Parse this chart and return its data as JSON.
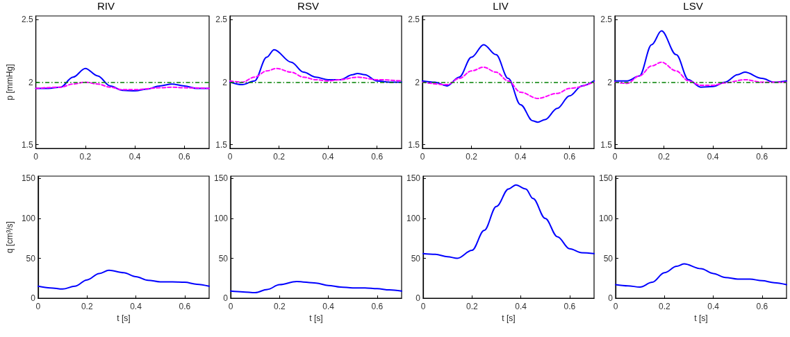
{
  "chart_data": [
    {
      "type": "line",
      "title": "RIV",
      "ylabel": "p [mmHg]",
      "xlim": [
        0,
        0.7
      ],
      "xticks": [
        0,
        0.2,
        0.4,
        0.6
      ],
      "ylim": [
        1.47,
        2.53
      ],
      "yticks": [
        1.5,
        2,
        2.5
      ],
      "grid": false,
      "marker": "none",
      "ref_lines": [
        {
          "axis": "y",
          "value": 2,
          "color": "#008000",
          "line_style": "dashdot"
        }
      ],
      "series": [
        {
          "color": "#0000ff",
          "line_style": "solid",
          "x": [
            0,
            0.05,
            0.1,
            0.15,
            0.2,
            0.25,
            0.3,
            0.35,
            0.4,
            0.45,
            0.5,
            0.55,
            0.6,
            0.65,
            0.7
          ],
          "values": [
            1.95,
            1.95,
            1.96,
            2.04,
            2.11,
            2.05,
            1.97,
            1.935,
            1.93,
            1.945,
            1.97,
            1.985,
            1.97,
            1.95,
            1.95
          ]
        },
        {
          "color": "#ff00ff",
          "line_style": "dashed",
          "x": [
            0,
            0.1,
            0.15,
            0.2,
            0.25,
            0.3,
            0.35,
            0.4,
            0.5,
            0.55,
            0.6,
            0.7
          ],
          "values": [
            1.95,
            1.96,
            1.985,
            2.0,
            1.985,
            1.96,
            1.94,
            1.94,
            1.955,
            1.96,
            1.955,
            1.95
          ]
        }
      ]
    },
    {
      "type": "line",
      "title": "RSV",
      "xlim": [
        0,
        0.7
      ],
      "xticks": [
        0,
        0.2,
        0.4,
        0.6
      ],
      "ylim": [
        1.47,
        2.53
      ],
      "yticks": [
        1.5,
        2,
        2.5
      ],
      "grid": false,
      "marker": "none",
      "ref_lines": [
        {
          "axis": "y",
          "value": 2,
          "color": "#008000",
          "line_style": "dashdot"
        }
      ],
      "series": [
        {
          "color": "#0000ff",
          "line_style": "solid",
          "x": [
            0,
            0.05,
            0.1,
            0.15,
            0.18,
            0.25,
            0.3,
            0.35,
            0.4,
            0.45,
            0.5,
            0.52,
            0.55,
            0.6,
            0.65,
            0.7
          ],
          "values": [
            2.0,
            1.98,
            2.01,
            2.2,
            2.26,
            2.16,
            2.08,
            2.04,
            2.02,
            2.02,
            2.06,
            2.07,
            2.06,
            2.01,
            2.0,
            2.0
          ]
        },
        {
          "color": "#ff00ff",
          "line_style": "dashed",
          "x": [
            0,
            0.05,
            0.1,
            0.15,
            0.19,
            0.25,
            0.3,
            0.35,
            0.4,
            0.45,
            0.52,
            0.6,
            0.7
          ],
          "values": [
            2.01,
            2.0,
            2.04,
            2.09,
            2.11,
            2.08,
            2.04,
            2.02,
            2.01,
            2.02,
            2.04,
            2.02,
            2.01
          ]
        }
      ]
    },
    {
      "type": "line",
      "title": "LIV",
      "xlim": [
        0,
        0.7
      ],
      "xticks": [
        0,
        0.2,
        0.4,
        0.6
      ],
      "ylim": [
        1.47,
        2.53
      ],
      "yticks": [
        1.5,
        2,
        2.5
      ],
      "grid": false,
      "marker": "none",
      "ref_lines": [
        {
          "axis": "y",
          "value": 2,
          "color": "#008000",
          "line_style": "dashdot"
        }
      ],
      "series": [
        {
          "color": "#0000ff",
          "line_style": "solid",
          "x": [
            0,
            0.05,
            0.1,
            0.15,
            0.2,
            0.25,
            0.3,
            0.35,
            0.4,
            0.45,
            0.47,
            0.5,
            0.55,
            0.6,
            0.65,
            0.7
          ],
          "values": [
            2.01,
            2.0,
            1.97,
            2.04,
            2.2,
            2.3,
            2.22,
            2.03,
            1.82,
            1.69,
            1.68,
            1.7,
            1.79,
            1.89,
            1.97,
            2.01
          ]
        },
        {
          "color": "#ff00ff",
          "line_style": "dashed",
          "x": [
            0,
            0.1,
            0.15,
            0.2,
            0.25,
            0.3,
            0.35,
            0.4,
            0.47,
            0.55,
            0.6,
            0.7
          ],
          "values": [
            2.0,
            1.98,
            2.03,
            2.09,
            2.12,
            2.08,
            2.01,
            1.92,
            1.87,
            1.91,
            1.95,
            2.0
          ]
        }
      ]
    },
    {
      "type": "line",
      "title": "LSV",
      "xlim": [
        0,
        0.7
      ],
      "xticks": [
        0,
        0.2,
        0.4,
        0.6
      ],
      "ylim": [
        1.47,
        2.53
      ],
      "yticks": [
        1.5,
        2,
        2.5
      ],
      "grid": false,
      "marker": "none",
      "ref_lines": [
        {
          "axis": "y",
          "value": 2,
          "color": "#008000",
          "line_style": "dashdot"
        }
      ],
      "series": [
        {
          "color": "#0000ff",
          "line_style": "solid",
          "x": [
            0,
            0.05,
            0.1,
            0.15,
            0.19,
            0.25,
            0.3,
            0.35,
            0.4,
            0.45,
            0.5,
            0.53,
            0.6,
            0.65,
            0.7
          ],
          "values": [
            2.01,
            2.01,
            2.05,
            2.3,
            2.41,
            2.22,
            2.02,
            1.96,
            1.965,
            2.0,
            2.06,
            2.08,
            2.03,
            2.0,
            2.01
          ]
        },
        {
          "color": "#ff00ff",
          "line_style": "dashed",
          "x": [
            0,
            0.05,
            0.1,
            0.15,
            0.19,
            0.25,
            0.3,
            0.35,
            0.4,
            0.45,
            0.53,
            0.6,
            0.7
          ],
          "values": [
            2.0,
            1.99,
            2.05,
            2.13,
            2.16,
            2.09,
            2.01,
            1.975,
            1.975,
            1.995,
            2.02,
            2.0,
            2.0
          ]
        }
      ]
    },
    {
      "type": "line",
      "xlabel": "t [s]",
      "ylabel": "q [cm³/s]",
      "xlim": [
        0,
        0.7
      ],
      "xticks": [
        0,
        0.2,
        0.4,
        0.6
      ],
      "ylim": [
        0,
        153
      ],
      "yticks": [
        0,
        50,
        100,
        150
      ],
      "grid": false,
      "marker": "none",
      "series": [
        {
          "color": "#0000ff",
          "line_style": "solid",
          "x": [
            0,
            0.05,
            0.1,
            0.15,
            0.2,
            0.25,
            0.29,
            0.35,
            0.4,
            0.45,
            0.5,
            0.55,
            0.6,
            0.65,
            0.7
          ],
          "values": [
            15,
            13,
            11.5,
            15,
            23,
            31,
            35,
            32,
            27,
            22.5,
            20.5,
            20.5,
            20,
            17.5,
            15
          ]
        }
      ]
    },
    {
      "type": "line",
      "xlabel": "t [s]",
      "xlim": [
        0,
        0.7
      ],
      "xticks": [
        0,
        0.2,
        0.4,
        0.6
      ],
      "ylim": [
        0,
        153
      ],
      "yticks": [
        0,
        50,
        100,
        150
      ],
      "grid": false,
      "marker": "none",
      "series": [
        {
          "color": "#0000ff",
          "line_style": "solid",
          "x": [
            0,
            0.05,
            0.1,
            0.15,
            0.2,
            0.27,
            0.35,
            0.4,
            0.45,
            0.5,
            0.55,
            0.6,
            0.65,
            0.7
          ],
          "values": [
            9,
            8,
            7,
            11,
            17,
            21,
            19,
            16,
            14,
            13,
            13,
            12,
            10.5,
            9
          ]
        }
      ]
    },
    {
      "type": "line",
      "xlabel": "t [s]",
      "xlim": [
        0,
        0.7
      ],
      "xticks": [
        0,
        0.2,
        0.4,
        0.6
      ],
      "ylim": [
        0,
        153
      ],
      "yticks": [
        0,
        50,
        100,
        150
      ],
      "grid": false,
      "marker": "none",
      "series": [
        {
          "color": "#0000ff",
          "line_style": "solid",
          "x": [
            0,
            0.05,
            0.1,
            0.14,
            0.2,
            0.25,
            0.3,
            0.35,
            0.38,
            0.42,
            0.45,
            0.5,
            0.55,
            0.6,
            0.65,
            0.7
          ],
          "values": [
            56,
            55,
            52,
            50,
            60,
            85,
            115,
            137,
            142,
            137,
            125,
            100,
            77,
            62,
            57,
            56
          ]
        }
      ]
    },
    {
      "type": "line",
      "xlabel": "t [s]",
      "xlim": [
        0,
        0.7
      ],
      "xticks": [
        0,
        0.2,
        0.4,
        0.6
      ],
      "ylim": [
        0,
        153
      ],
      "yticks": [
        0,
        50,
        100,
        150
      ],
      "grid": false,
      "marker": "none",
      "series": [
        {
          "color": "#0000ff",
          "line_style": "solid",
          "x": [
            0,
            0.05,
            0.1,
            0.15,
            0.2,
            0.25,
            0.28,
            0.35,
            0.4,
            0.45,
            0.5,
            0.55,
            0.6,
            0.65,
            0.7
          ],
          "values": [
            17,
            15.5,
            14,
            20,
            32,
            40,
            43,
            37,
            31,
            26,
            24,
            24,
            22,
            19.5,
            17
          ]
        }
      ]
    }
  ]
}
